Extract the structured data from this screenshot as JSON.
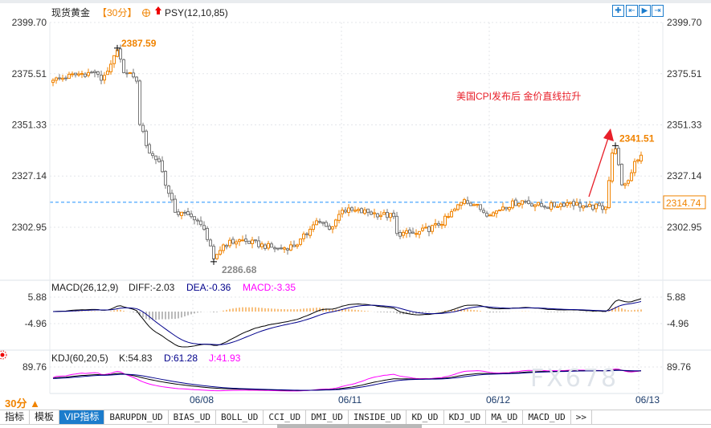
{
  "header": {
    "symbol": "现货黄金",
    "period_tag": "【30分】",
    "indicator": "PSY(12,10,85)",
    "toolbar_icons": [
      "crosshair-icon",
      "zoom-range-icon",
      "play-icon",
      "exit-icon"
    ]
  },
  "annotation": "美国CPI发布后 金价直线拉升",
  "colors": {
    "up": "#f08300",
    "down": "#777777",
    "ref_line": "#1e90ff",
    "annotation": "#e8202a",
    "diff": "#000000",
    "dea": "#00008b",
    "macd": "#ff00ff"
  },
  "chart_data": {
    "type": "candlestick",
    "interval": "30分",
    "y_ticks": [
      "2399.70",
      "2375.51",
      "2351.33",
      "2327.14",
      "2302.95"
    ],
    "ylim": [
      2302.95,
      2399.7
    ],
    "high_label": "2387.59",
    "low_label": "2286.68",
    "spike_label": "2341.51",
    "reference_price": "2314.74",
    "x_labels": [
      "06/08",
      "06/11",
      "06/12",
      "06/13"
    ],
    "close_keypoints": [
      [
        0,
        2372.4
      ],
      [
        8,
        2375.4
      ],
      [
        13,
        2376
      ],
      [
        15,
        2372.4
      ],
      [
        18,
        2380
      ],
      [
        20,
        2386.8
      ],
      [
        22,
        2376
      ],
      [
        25,
        2374
      ],
      [
        26,
        2372
      ],
      [
        27,
        2351.5
      ],
      [
        30,
        2338
      ],
      [
        33,
        2334
      ],
      [
        36,
        2319
      ],
      [
        38,
        2310
      ],
      [
        43,
        2308
      ],
      [
        47,
        2302
      ],
      [
        50,
        2288
      ],
      [
        53,
        2294.6
      ],
      [
        58,
        2297
      ],
      [
        70,
        2292.7
      ],
      [
        76,
        2294.6
      ],
      [
        80,
        2302
      ],
      [
        82,
        2306
      ],
      [
        86,
        2302
      ],
      [
        90,
        2311
      ],
      [
        98,
        2310
      ],
      [
        106,
        2308
      ],
      [
        107,
        2300
      ],
      [
        113,
        2300
      ],
      [
        120,
        2304
      ],
      [
        123,
        2308
      ],
      [
        128,
        2316
      ],
      [
        131,
        2313.6
      ],
      [
        136,
        2308.7
      ],
      [
        140,
        2312.5
      ],
      [
        146,
        2315.5
      ],
      [
        153,
        2312.5
      ],
      [
        161,
        2314.7
      ],
      [
        166,
        2312.5
      ],
      [
        172,
        2312.5
      ],
      [
        174,
        2338
      ],
      [
        175,
        2340
      ],
      [
        177,
        2323
      ],
      [
        179,
        2325
      ],
      [
        181,
        2334
      ],
      [
        183,
        2337
      ]
    ]
  },
  "macd": {
    "title": "MACD(26,12,9)",
    "diff": "DIFF:-2.03",
    "dea": "DEA:-0.36",
    "macd": "MACD:-3.35",
    "ticks": [
      "5.88",
      "-4.96"
    ]
  },
  "kdj": {
    "title": "KDJ(60,20,5)",
    "k": "K:54.83",
    "d": "D:61.28",
    "j": "J:41.93",
    "ticks": [
      "89.76"
    ]
  },
  "footer": {
    "period": "30分 ▲",
    "watermark": "FX678",
    "tabs": [
      "指标",
      "模板",
      "VIP指标",
      "BARUPDN_UD",
      "BIAS_UD",
      "BOLL_UD",
      "CCI_UD",
      "DMI_UD",
      "INSIDE_UD",
      "KD_UD",
      "KDJ_UD",
      "MA_UD",
      "MACD_UD",
      ">>"
    ],
    "active_tab": "VIP指标"
  }
}
